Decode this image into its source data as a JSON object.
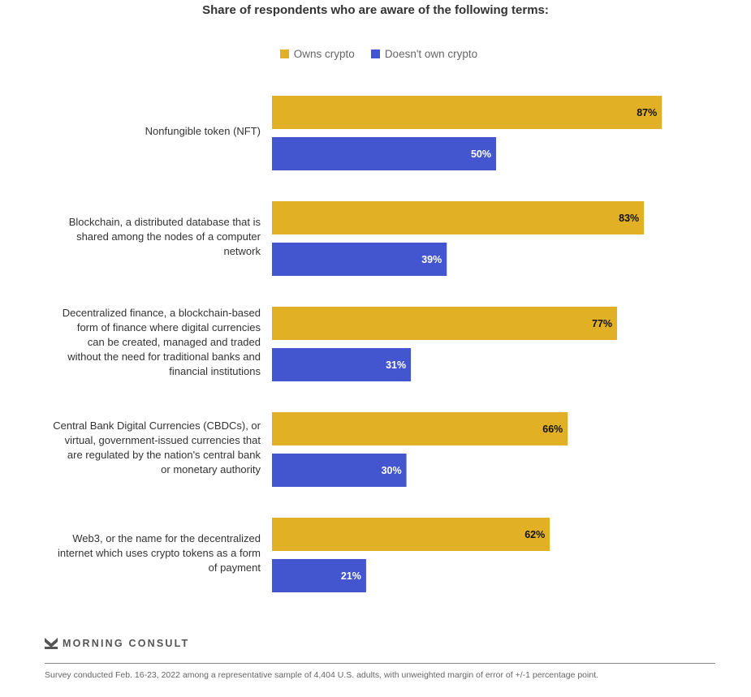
{
  "chart_data": {
    "type": "bar",
    "orientation": "horizontal",
    "title": "Share of respondents who are aware of the following terms:",
    "xlabel": "",
    "ylabel": "",
    "xlim": [
      0,
      100
    ],
    "grid": false,
    "legend_position": "top-center",
    "categories": [
      "Nonfungible token (NFT)",
      "Blockchain, a distributed database that is shared among the nodes of a computer network",
      "Decentralized finance, a blockchain-based form of finance where digital currencies can be created, managed and traded without the need for traditional banks and financial institutions",
      "Central Bank Digital Currencies (CBDCs), or virtual, government-issued currencies that are regulated by the nation's central bank or monetary authority",
      "Web3, or the name for the decentralized internet which uses crypto tokens as a form of payment"
    ],
    "category_lines": [
      [
        "Nonfungible token (NFT)"
      ],
      [
        "Blockchain, a distributed database that is",
        "shared among the nodes of a computer",
        "network"
      ],
      [
        "Decentralized finance, a blockchain-based",
        "form of finance where digital currencies",
        "can be created, managed and traded",
        "without the need for traditional banks and",
        "financial institutions"
      ],
      [
        "Central Bank Digital Currencies (CBDCs), or",
        "virtual, government-issued currencies that",
        "are regulated by the nation's central bank",
        "or monetary authority"
      ],
      [
        "Web3, or the name for the decentralized",
        "internet which uses crypto tokens as a form",
        "of payment"
      ]
    ],
    "series": [
      {
        "name": "Owns crypto",
        "color": "#e2b024",
        "label_color": "#111111",
        "values": [
          87,
          83,
          77,
          66,
          62
        ]
      },
      {
        "name": "Doesn't own crypto",
        "color": "#4456cf",
        "label_color": "#ffffff",
        "values": [
          50,
          39,
          31,
          30,
          21
        ]
      }
    ],
    "value_suffix": "%"
  },
  "footer": {
    "brand": "MORNING CONSULT",
    "note": "Survey conducted Feb. 16-23, 2022 among a representative sample of 4,404 U.S. adults, with unweighted margin of error of +/-1 percentage point."
  }
}
